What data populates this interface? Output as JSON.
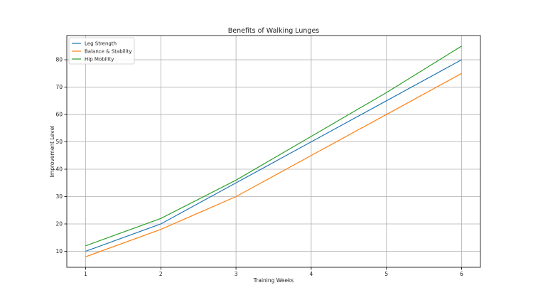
{
  "chart_data": {
    "type": "line",
    "title": "Benefits of Walking Lunges",
    "xlabel": "Training Weeks",
    "ylabel": "Improvement Level",
    "x": [
      1,
      2,
      3,
      4,
      5,
      6
    ],
    "xticks": [
      "1",
      "2",
      "3",
      "4",
      "5",
      "6"
    ],
    "yticks": [
      "10",
      "20",
      "30",
      "40",
      "50",
      "60",
      "70",
      "80"
    ],
    "xlim": [
      0.75,
      6.25
    ],
    "ylim": [
      4.15,
      88.85
    ],
    "grid": true,
    "legend_position": "top-left",
    "series": [
      {
        "name": "Leg Strength",
        "color": "#1f77b4",
        "values": [
          10,
          20,
          35,
          50,
          65,
          80
        ]
      },
      {
        "name": "Balance & Stability",
        "color": "#ff7f0e",
        "values": [
          8,
          18,
          30,
          45,
          60,
          75
        ]
      },
      {
        "name": "Hip Mobility",
        "color": "#2ca02c",
        "values": [
          12,
          22,
          36,
          52,
          68,
          85
        ]
      }
    ]
  }
}
